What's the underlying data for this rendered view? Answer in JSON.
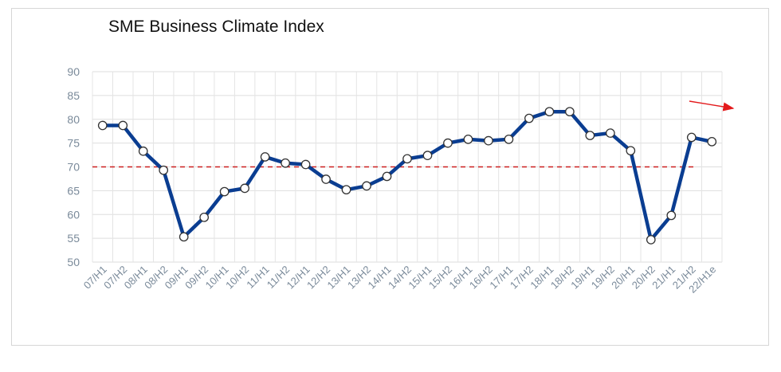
{
  "chart_data": {
    "type": "line",
    "title": "SME Business Climate Index",
    "xlabel": "",
    "ylabel": "",
    "ylim": [
      50,
      90
    ],
    "yticks": [
      50,
      55,
      60,
      65,
      70,
      75,
      80,
      85,
      90
    ],
    "grid": true,
    "categories": [
      "07/H1",
      "07/H2",
      "08/H1",
      "08/H2",
      "09/H1",
      "09/H2",
      "10/H1",
      "10/H2",
      "11/H1",
      "11/H2",
      "12/H1",
      "12/H2",
      "13/H1",
      "13/H2",
      "14/H1",
      "14/H2",
      "15/H1",
      "15/H2",
      "16/H1",
      "16/H2",
      "17/H1",
      "17/H2",
      "18/H1",
      "18/H2",
      "19/H1",
      "19/H2",
      "20/H1",
      "20/H2",
      "21/H1",
      "21/H2",
      "22/H1e"
    ],
    "series": [
      {
        "name": "",
        "color": "#0a3d91",
        "values": [
          78.7,
          78.7,
          73.3,
          69.3,
          55.3,
          59.4,
          64.8,
          65.5,
          72.1,
          70.8,
          70.5,
          67.4,
          65.2,
          66.0,
          68.0,
          71.7,
          72.4,
          75.0,
          75.8,
          75.5,
          75.8,
          80.2,
          81.6,
          81.6,
          76.6,
          77.1,
          73.4,
          54.7,
          59.8,
          76.2,
          75.3
        ]
      }
    ],
    "reference_line": {
      "y": 70,
      "color": "#cc1f1f",
      "style": "dashed"
    },
    "trend_arrow": {
      "color": "#e31a1c"
    }
  }
}
